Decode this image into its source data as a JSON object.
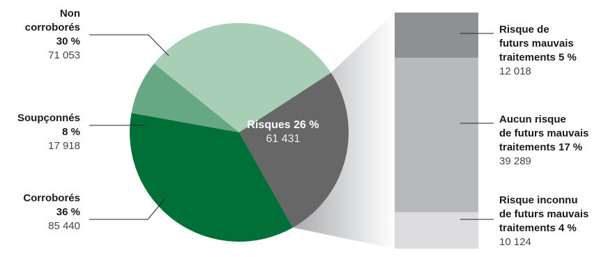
{
  "chart_data": {
    "type": "pie",
    "slices": [
      {
        "label_lines": [
          "Non",
          "corroborés"
        ],
        "percent_text": "30 %",
        "pct": 30,
        "count": "71 053",
        "color": "#a8cfb6"
      },
      {
        "label_lines": [
          "Risques 26 %"
        ],
        "percent_text": "",
        "pct": 26,
        "count": "61 431",
        "color": "#676767"
      },
      {
        "label_lines": [
          "Corroborés"
        ],
        "percent_text": "36 %",
        "pct": 36,
        "count": "85 440",
        "color": "#007038"
      },
      {
        "label_lines": [
          "Soupçonnés"
        ],
        "percent_text": "8 %",
        "pct": 8,
        "count": "17 918",
        "color": "#66a883"
      }
    ],
    "breakdown": {
      "of": "Risques 26 %",
      "segments": [
        {
          "label_lines": [
            "Risque de",
            "futurs mauvais",
            "traitements 5 %"
          ],
          "pct": 5,
          "count": "12 018",
          "color": "#8f9093"
        },
        {
          "label_lines": [
            "Aucun risque",
            "de futurs mauvais",
            "traitements 17 %"
          ],
          "pct": 17,
          "count": "39 289",
          "color": "#b8b9bc"
        },
        {
          "label_lines": [
            "Risque inconnu",
            "de futurs mauvais",
            "traitements 4 %"
          ],
          "pct": 4,
          "count": "10 124",
          "color": "#dcdcde"
        }
      ]
    }
  }
}
